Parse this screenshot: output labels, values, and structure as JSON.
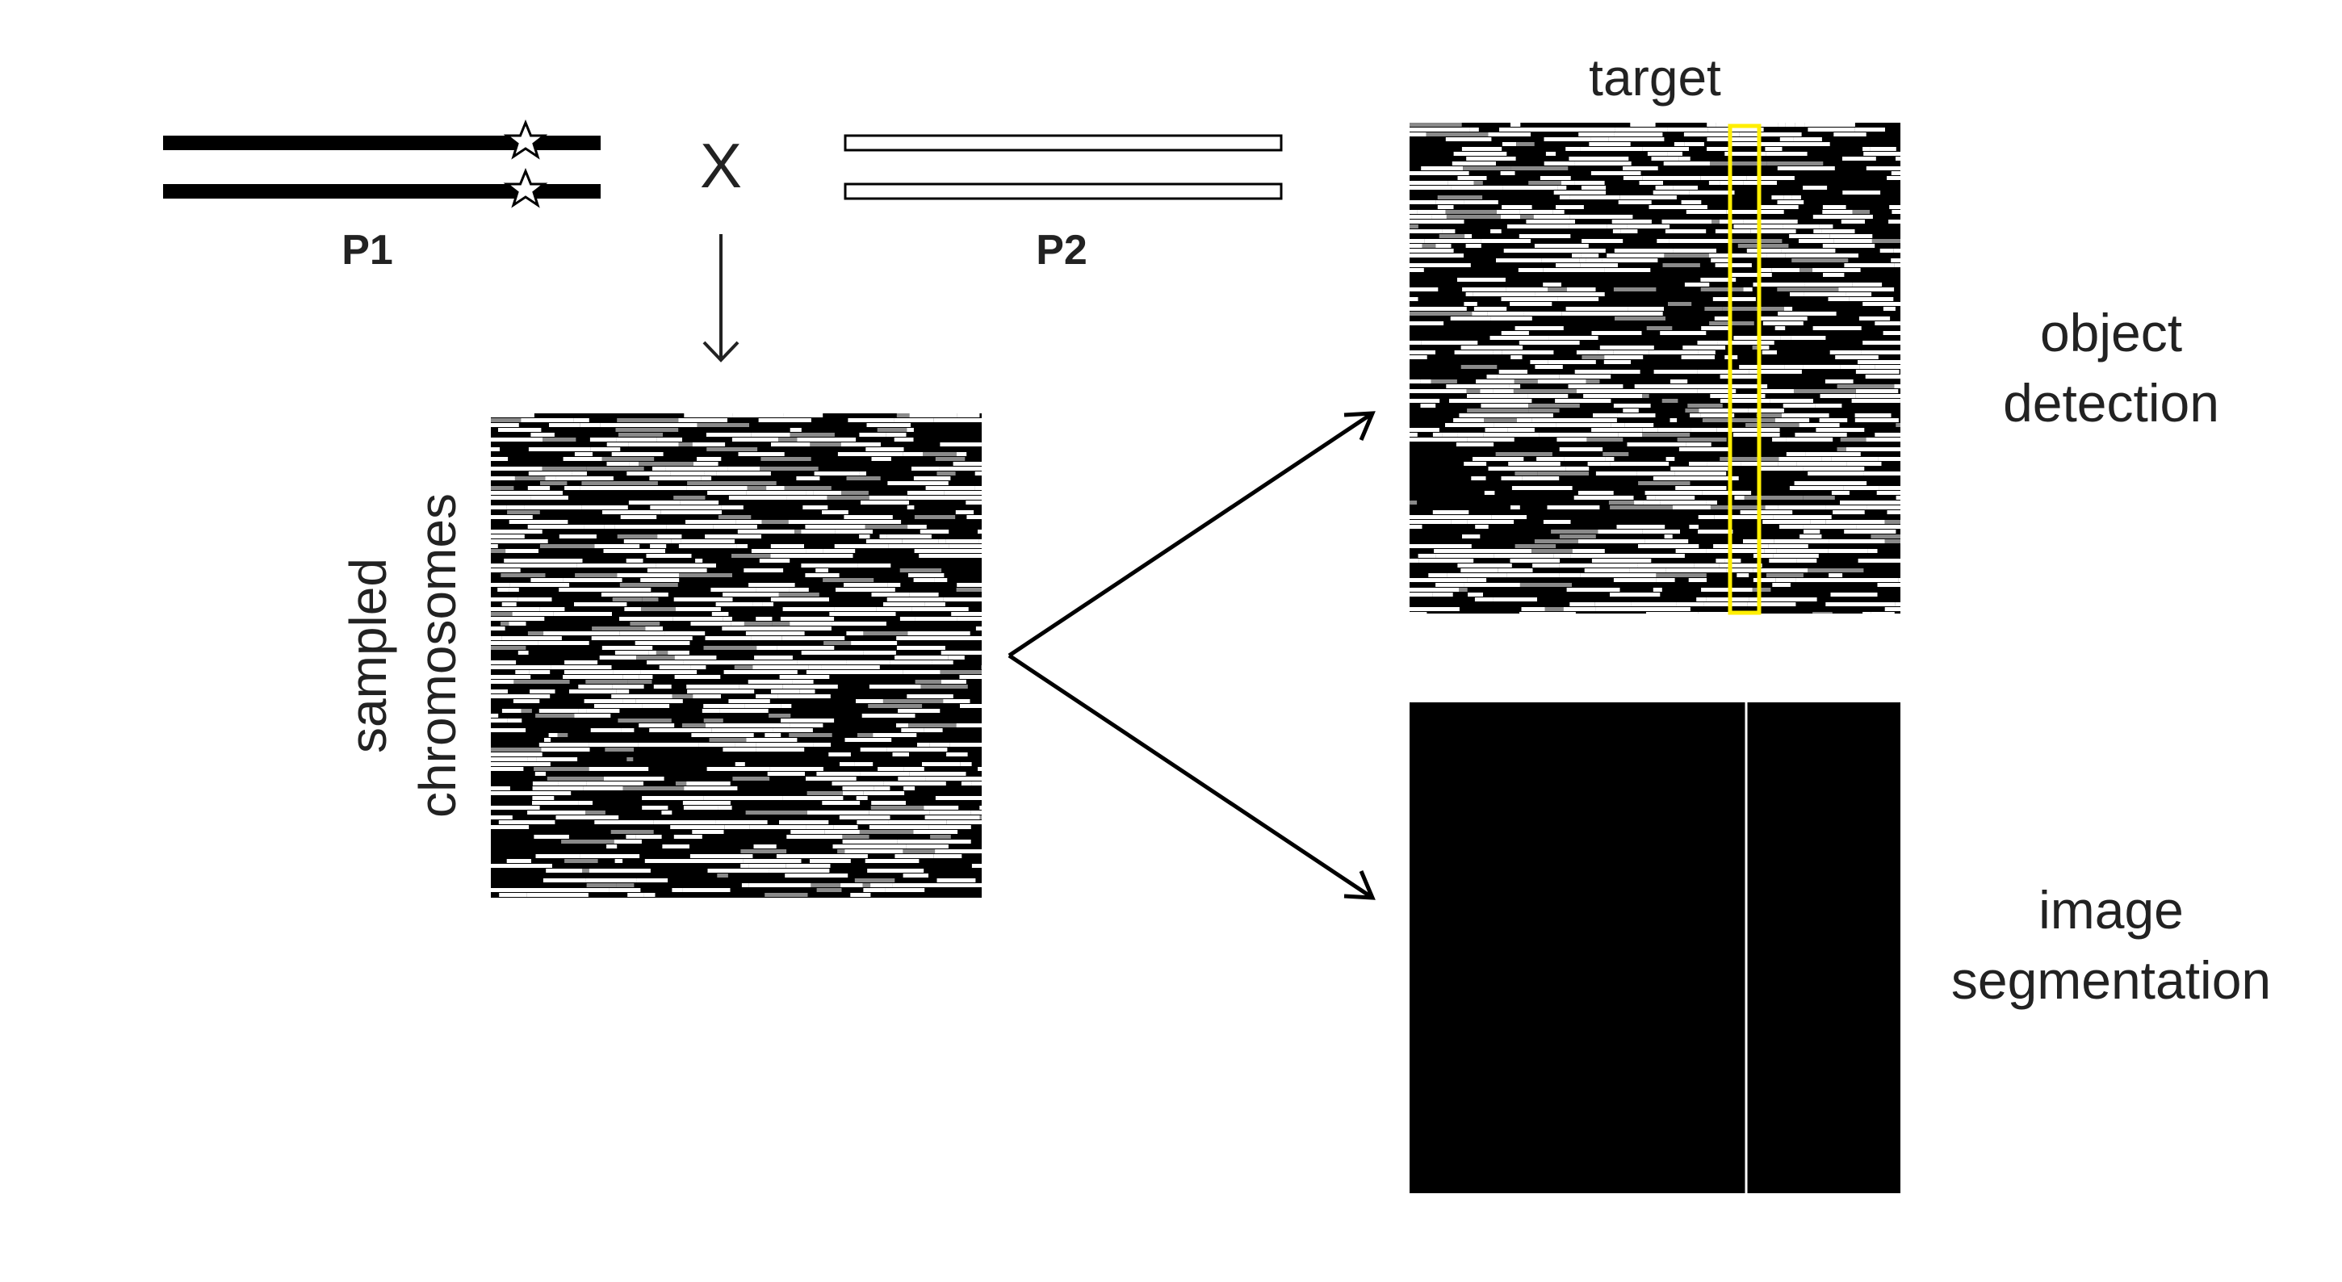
{
  "parents": {
    "p1_label": "P1",
    "p2_label": "P2",
    "cross_symbol": "X",
    "p1_color": "#000000",
    "p2_color": "#ffffff",
    "mutation_marker_icon": "star-icon"
  },
  "sampled": {
    "label_line1": "sampled",
    "label_line2": "chromosomes"
  },
  "detection": {
    "target_label": "target",
    "label_line1": "object",
    "label_line2": "detection",
    "box_color": "#ffee00"
  },
  "segmentation": {
    "label_line1": "image",
    "label_line2": "segmentation"
  },
  "colors": {
    "black": "#000000",
    "white": "#ffffff",
    "gray": "#8a8a8a",
    "arrow": "#000000"
  }
}
